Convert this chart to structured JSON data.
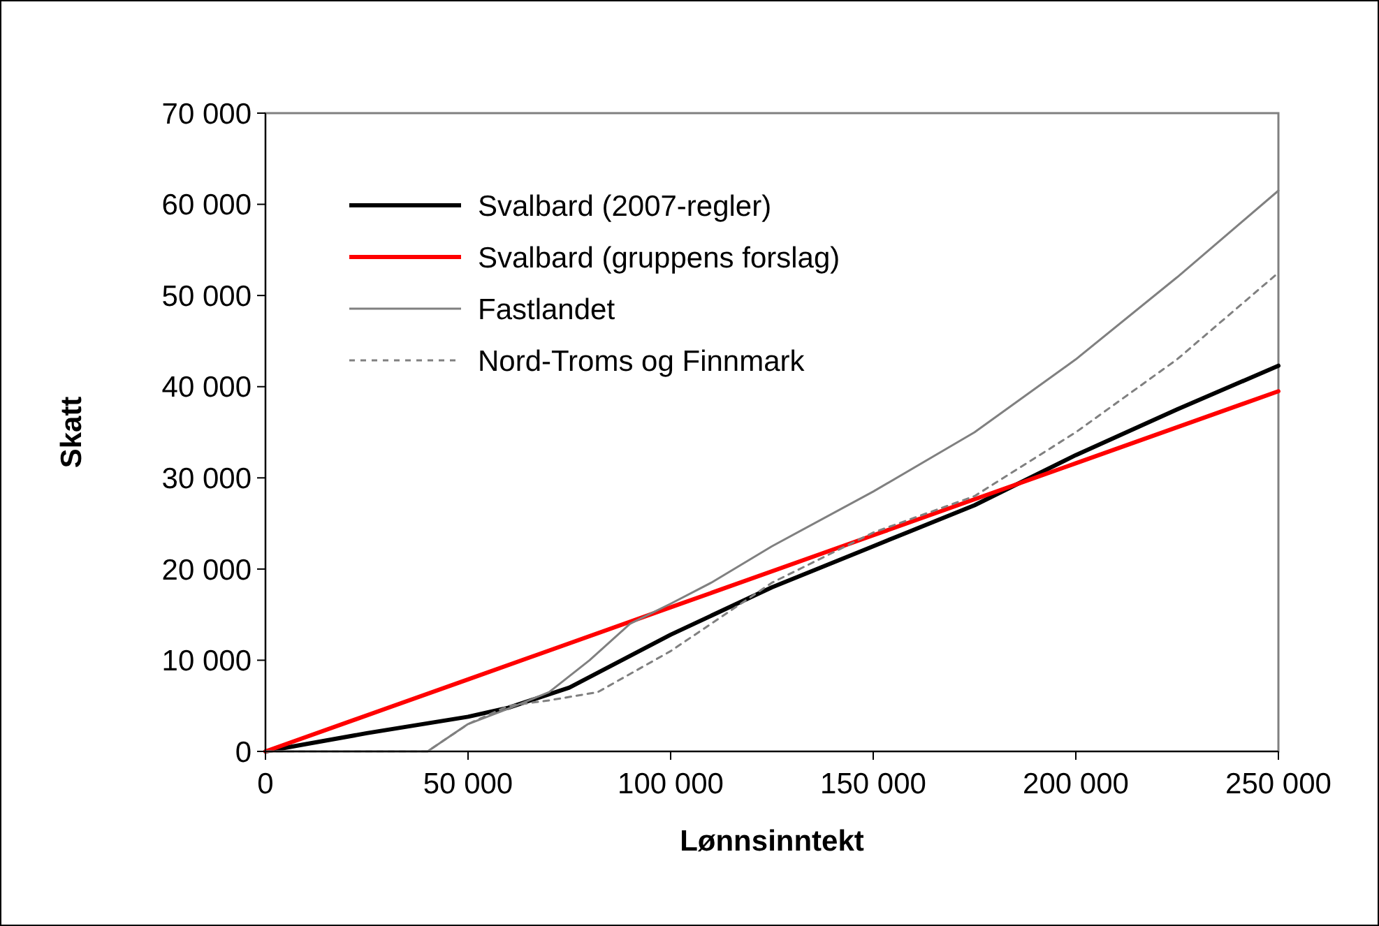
{
  "chart_data": {
    "type": "line",
    "xlabel": "Lønnsinntekt",
    "ylabel": "Skatt",
    "legend": "top left",
    "grid": false,
    "marker": "none",
    "xlim": [
      0,
      250000
    ],
    "ylim": [
      0,
      70000
    ],
    "xticks": [
      0,
      {
        "value": 50000,
        "label": "50 000"
      },
      {
        "value": 100000,
        "label": "100 000"
      },
      {
        "value": 150000,
        "label": "150 000"
      },
      {
        "value": 200000,
        "label": "200 000"
      },
      {
        "value": 250000,
        "label": "250 000"
      }
    ],
    "yticks": [
      0,
      {
        "value": 10000,
        "label": "10 000"
      },
      {
        "value": 20000,
        "label": "20 000"
      },
      {
        "value": 30000,
        "label": "30 000"
      },
      {
        "value": 40000,
        "label": "40 000"
      },
      {
        "value": 50000,
        "label": "50 000"
      },
      {
        "value": 60000,
        "label": "60 000"
      },
      {
        "value": 70000,
        "label": "70 000"
      }
    ],
    "series": [
      {
        "name": "Svalbard (2007-regler)",
        "color": "#000000",
        "line_style": "solid",
        "x": [
          0,
          10000,
          25000,
          50000,
          60000,
          75000,
          100000,
          125000,
          150000,
          175000,
          200000,
          225000,
          250000
        ],
        "values": [
          0,
          800,
          2000,
          3800,
          4800,
          7000,
          12800,
          18000,
          22500,
          27000,
          32500,
          37500,
          42300
        ]
      },
      {
        "name": "Svalbard (gruppens forslag)",
        "color": "#ff0000",
        "line_style": "solid",
        "x": [
          0,
          50000,
          100000,
          150000,
          200000,
          250000
        ],
        "values": [
          0,
          7900,
          15800,
          23700,
          31600,
          39500
        ]
      },
      {
        "name": "Fastlandet",
        "color": "#808080",
        "line_style": "solid",
        "x": [
          0,
          40000,
          50000,
          60000,
          70000,
          80000,
          90000,
          100000,
          110000,
          125000,
          150000,
          175000,
          200000,
          225000,
          250000
        ],
        "values": [
          0,
          0,
          3000,
          4700,
          6500,
          10000,
          14000,
          16200,
          18500,
          22500,
          28500,
          35000,
          43000,
          52000,
          61500
        ]
      },
      {
        "name": "Nord-Troms og Finnmark",
        "color": "#808080",
        "line_style": "dashed",
        "x": [
          0,
          40000,
          50000,
          60000,
          70000,
          82000,
          100000,
          125000,
          150000,
          175000,
          200000,
          225000,
          250000
        ],
        "values": [
          0,
          0,
          3000,
          5000,
          5600,
          6500,
          11000,
          18500,
          24000,
          28000,
          35000,
          43000,
          52500
        ]
      }
    ]
  }
}
